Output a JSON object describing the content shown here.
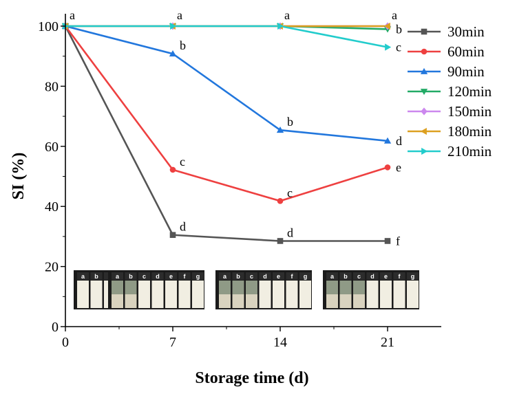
{
  "chart_data": {
    "type": "line",
    "xlabel": "Storage time (d)",
    "ylabel": "SI (%)",
    "x": [
      0,
      7,
      14,
      21
    ],
    "xticks": [
      0,
      7,
      14,
      21
    ],
    "xlim": [
      0,
      24.5
    ],
    "ylim": [
      0,
      100
    ],
    "yticks": [
      0,
      20,
      40,
      60,
      80,
      100
    ],
    "legend_position": "right",
    "series": [
      {
        "name": "30min",
        "color": "#555555",
        "marker": "square",
        "values": [
          100,
          30.5,
          28.5,
          28.5
        ],
        "letters": [
          "a",
          "d",
          "d",
          "f"
        ]
      },
      {
        "name": "60min",
        "color": "#ee4040",
        "marker": "circle",
        "values": [
          100,
          52.2,
          41.8,
          53
        ],
        "letters": [
          "a",
          "c",
          "c",
          "e"
        ]
      },
      {
        "name": "90min",
        "color": "#2277dd",
        "marker": "triangle-up",
        "values": [
          100,
          90.8,
          65.4,
          61.8
        ],
        "letters": [
          "a",
          "b",
          "b",
          "d"
        ]
      },
      {
        "name": "120min",
        "color": "#22aa66",
        "marker": "triangle-down",
        "values": [
          100,
          100,
          100,
          99
        ],
        "letters": [
          "a",
          "a",
          "a",
          "b"
        ]
      },
      {
        "name": "150min",
        "color": "#cc88ee",
        "marker": "diamond",
        "values": [
          100,
          100,
          100,
          100
        ],
        "letters": [
          "a",
          "a",
          "a",
          "a"
        ]
      },
      {
        "name": "180min",
        "color": "#dda020",
        "marker": "triangle-left",
        "values": [
          100,
          100,
          100,
          100
        ],
        "letters": [
          "a",
          "a",
          "a",
          "a"
        ]
      },
      {
        "name": "210min",
        "color": "#22cccc",
        "marker": "triangle-right",
        "values": [
          100,
          100,
          100,
          93
        ],
        "letters": [
          "a",
          "a",
          "a",
          "c"
        ]
      }
    ],
    "annotations": [
      {
        "x": 0,
        "y": 100,
        "text": "a"
      },
      {
        "x": 7,
        "y": 100,
        "text": "a"
      },
      {
        "x": 14,
        "y": 100,
        "text": "a"
      },
      {
        "x": 21,
        "y": 100,
        "text": "a"
      },
      {
        "x": 21,
        "y": 99,
        "text": "b"
      },
      {
        "x": 21,
        "y": 93,
        "text": "c"
      },
      {
        "x": 7,
        "y": 90.8,
        "text": "b"
      },
      {
        "x": 14,
        "y": 65.4,
        "text": "b"
      },
      {
        "x": 21,
        "y": 61.8,
        "text": "d"
      },
      {
        "x": 7,
        "y": 52.2,
        "text": "c"
      },
      {
        "x": 14,
        "y": 41.8,
        "text": "c"
      },
      {
        "x": 21,
        "y": 53,
        "text": "e"
      },
      {
        "x": 7,
        "y": 30.5,
        "text": "d"
      },
      {
        "x": 14,
        "y": 28.5,
        "text": "d"
      },
      {
        "x": 21,
        "y": 28.5,
        "text": "f"
      }
    ],
    "inset_photos": {
      "days": [
        0,
        7,
        14,
        21
      ],
      "vial_labels": [
        "a",
        "b",
        "c",
        "d",
        "e",
        "f",
        "g"
      ],
      "separated_vials": [
        [],
        [
          "a",
          "b"
        ],
        [
          "a",
          "b",
          "c"
        ],
        [
          "a",
          "b",
          "c"
        ]
      ]
    }
  }
}
